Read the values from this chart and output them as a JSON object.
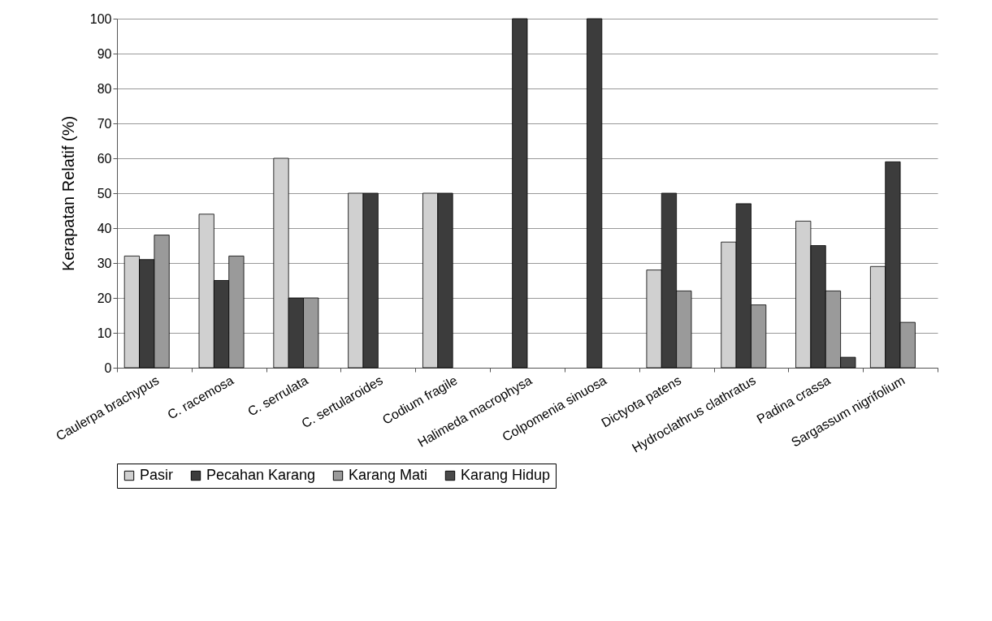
{
  "chart_data": {
    "type": "bar",
    "ylabel": "Kerapatan Relatif (%)",
    "categories": [
      "Caulerpa brachypus",
      "C. racemosa",
      "C. serrulata",
      "C. sertularoides",
      "Codium fragile",
      "Halimeda macrophysa",
      "Colpomenia sinuosa",
      "Dictyota patens",
      "Hydroclathrus clathratus",
      "Padina crassa",
      "Sargassum nigrifolium"
    ],
    "series": [
      {
        "name": "Pasir",
        "color": "#d0d0d0",
        "values": [
          32,
          44,
          60,
          50,
          50,
          null,
          null,
          28,
          36,
          42,
          29
        ]
      },
      {
        "name": "Pecahan Karang",
        "color": "#3c3c3c",
        "values": [
          31,
          25,
          20,
          50,
          50,
          100,
          100,
          50,
          47,
          35,
          59
        ]
      },
      {
        "name": "Karang Mati",
        "color": "#9a9a9a",
        "values": [
          38,
          32,
          20,
          null,
          null,
          null,
          null,
          22,
          18,
          22,
          13
        ]
      },
      {
        "name": "Karang Hidup",
        "color": "#4a4a4a",
        "values": [
          null,
          null,
          null,
          null,
          null,
          null,
          null,
          null,
          null,
          3,
          null
        ]
      }
    ],
    "ylim": [
      0,
      100
    ],
    "yticks": [
      0,
      10,
      20,
      30,
      40,
      50,
      60,
      70,
      80,
      90,
      100
    ],
    "grid": "y",
    "legend": "bottom"
  }
}
